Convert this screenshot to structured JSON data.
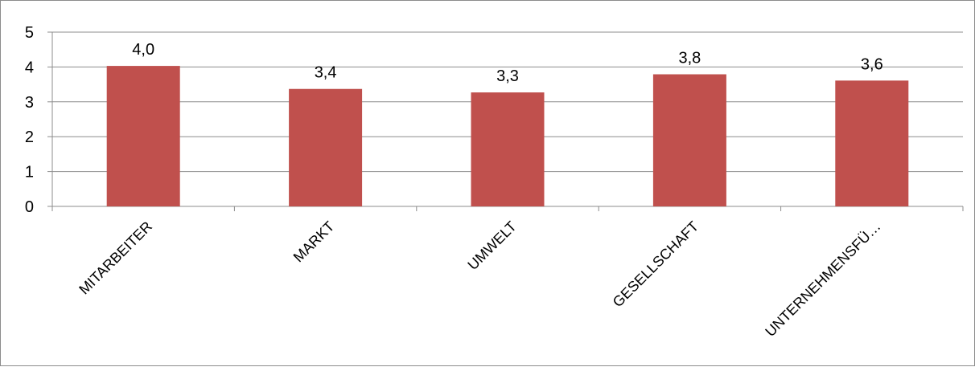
{
  "chart_data": {
    "type": "bar",
    "categories": [
      "MITARBEITER",
      "MARKT",
      "UMWELT",
      "GESELLSCHAFT",
      "UNTERNEHMENSFÜ…"
    ],
    "values": [
      4.03,
      3.37,
      3.27,
      3.79,
      3.61
    ],
    "data_labels": [
      "4,0",
      "3,4",
      "3,3",
      "3,8",
      "3,6"
    ],
    "y_ticks": [
      "0",
      "1",
      "2",
      "3",
      "4",
      "5"
    ],
    "ylim": [
      0,
      5
    ],
    "grid": true,
    "legend": "none",
    "bar_color": "#C0504D"
  }
}
